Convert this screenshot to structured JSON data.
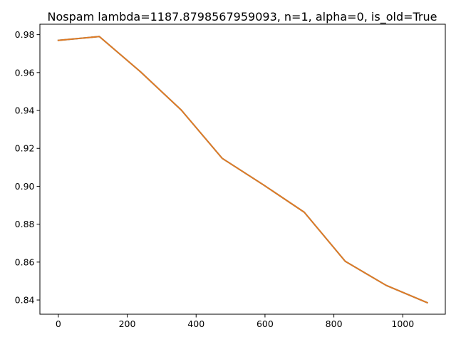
{
  "chart_data": {
    "type": "line",
    "title": "Nospam lambda=1187.8798567959093, n=1, alpha=0, is_old=True",
    "xlabel": "",
    "ylabel": "",
    "xlim": [
      -53.5,
      1123.5
    ],
    "ylim": [
      0.8325,
      0.9855
    ],
    "xticks": [
      0,
      200,
      400,
      600,
      800,
      1000
    ],
    "xtick_labels": [
      "0",
      "200",
      "400",
      "600",
      "800",
      "1000"
    ],
    "yticks": [
      0.84,
      0.86,
      0.88,
      0.9,
      0.92,
      0.94,
      0.96,
      0.98
    ],
    "ytick_labels": [
      "0.84",
      "0.86",
      "0.88",
      "0.90",
      "0.92",
      "0.94",
      "0.96",
      "0.98"
    ],
    "grid": false,
    "legend": "none",
    "series": [
      {
        "color": "#1f77b4",
        "x": [
          0,
          119,
          238,
          357,
          476,
          595,
          714,
          833,
          952,
          1071
        ],
        "y": [
          0.977,
          0.979,
          0.9605,
          0.9402,
          0.9147,
          0.9008,
          0.8863,
          0.8604,
          0.8477,
          0.8386
        ]
      },
      {
        "color": "#e07b24",
        "x": [
          0,
          119,
          238,
          357,
          476,
          595,
          714,
          833,
          952,
          1071
        ],
        "y": [
          0.977,
          0.979,
          0.9605,
          0.9402,
          0.9147,
          0.9008,
          0.8863,
          0.8604,
          0.8477,
          0.8386
        ]
      }
    ]
  }
}
